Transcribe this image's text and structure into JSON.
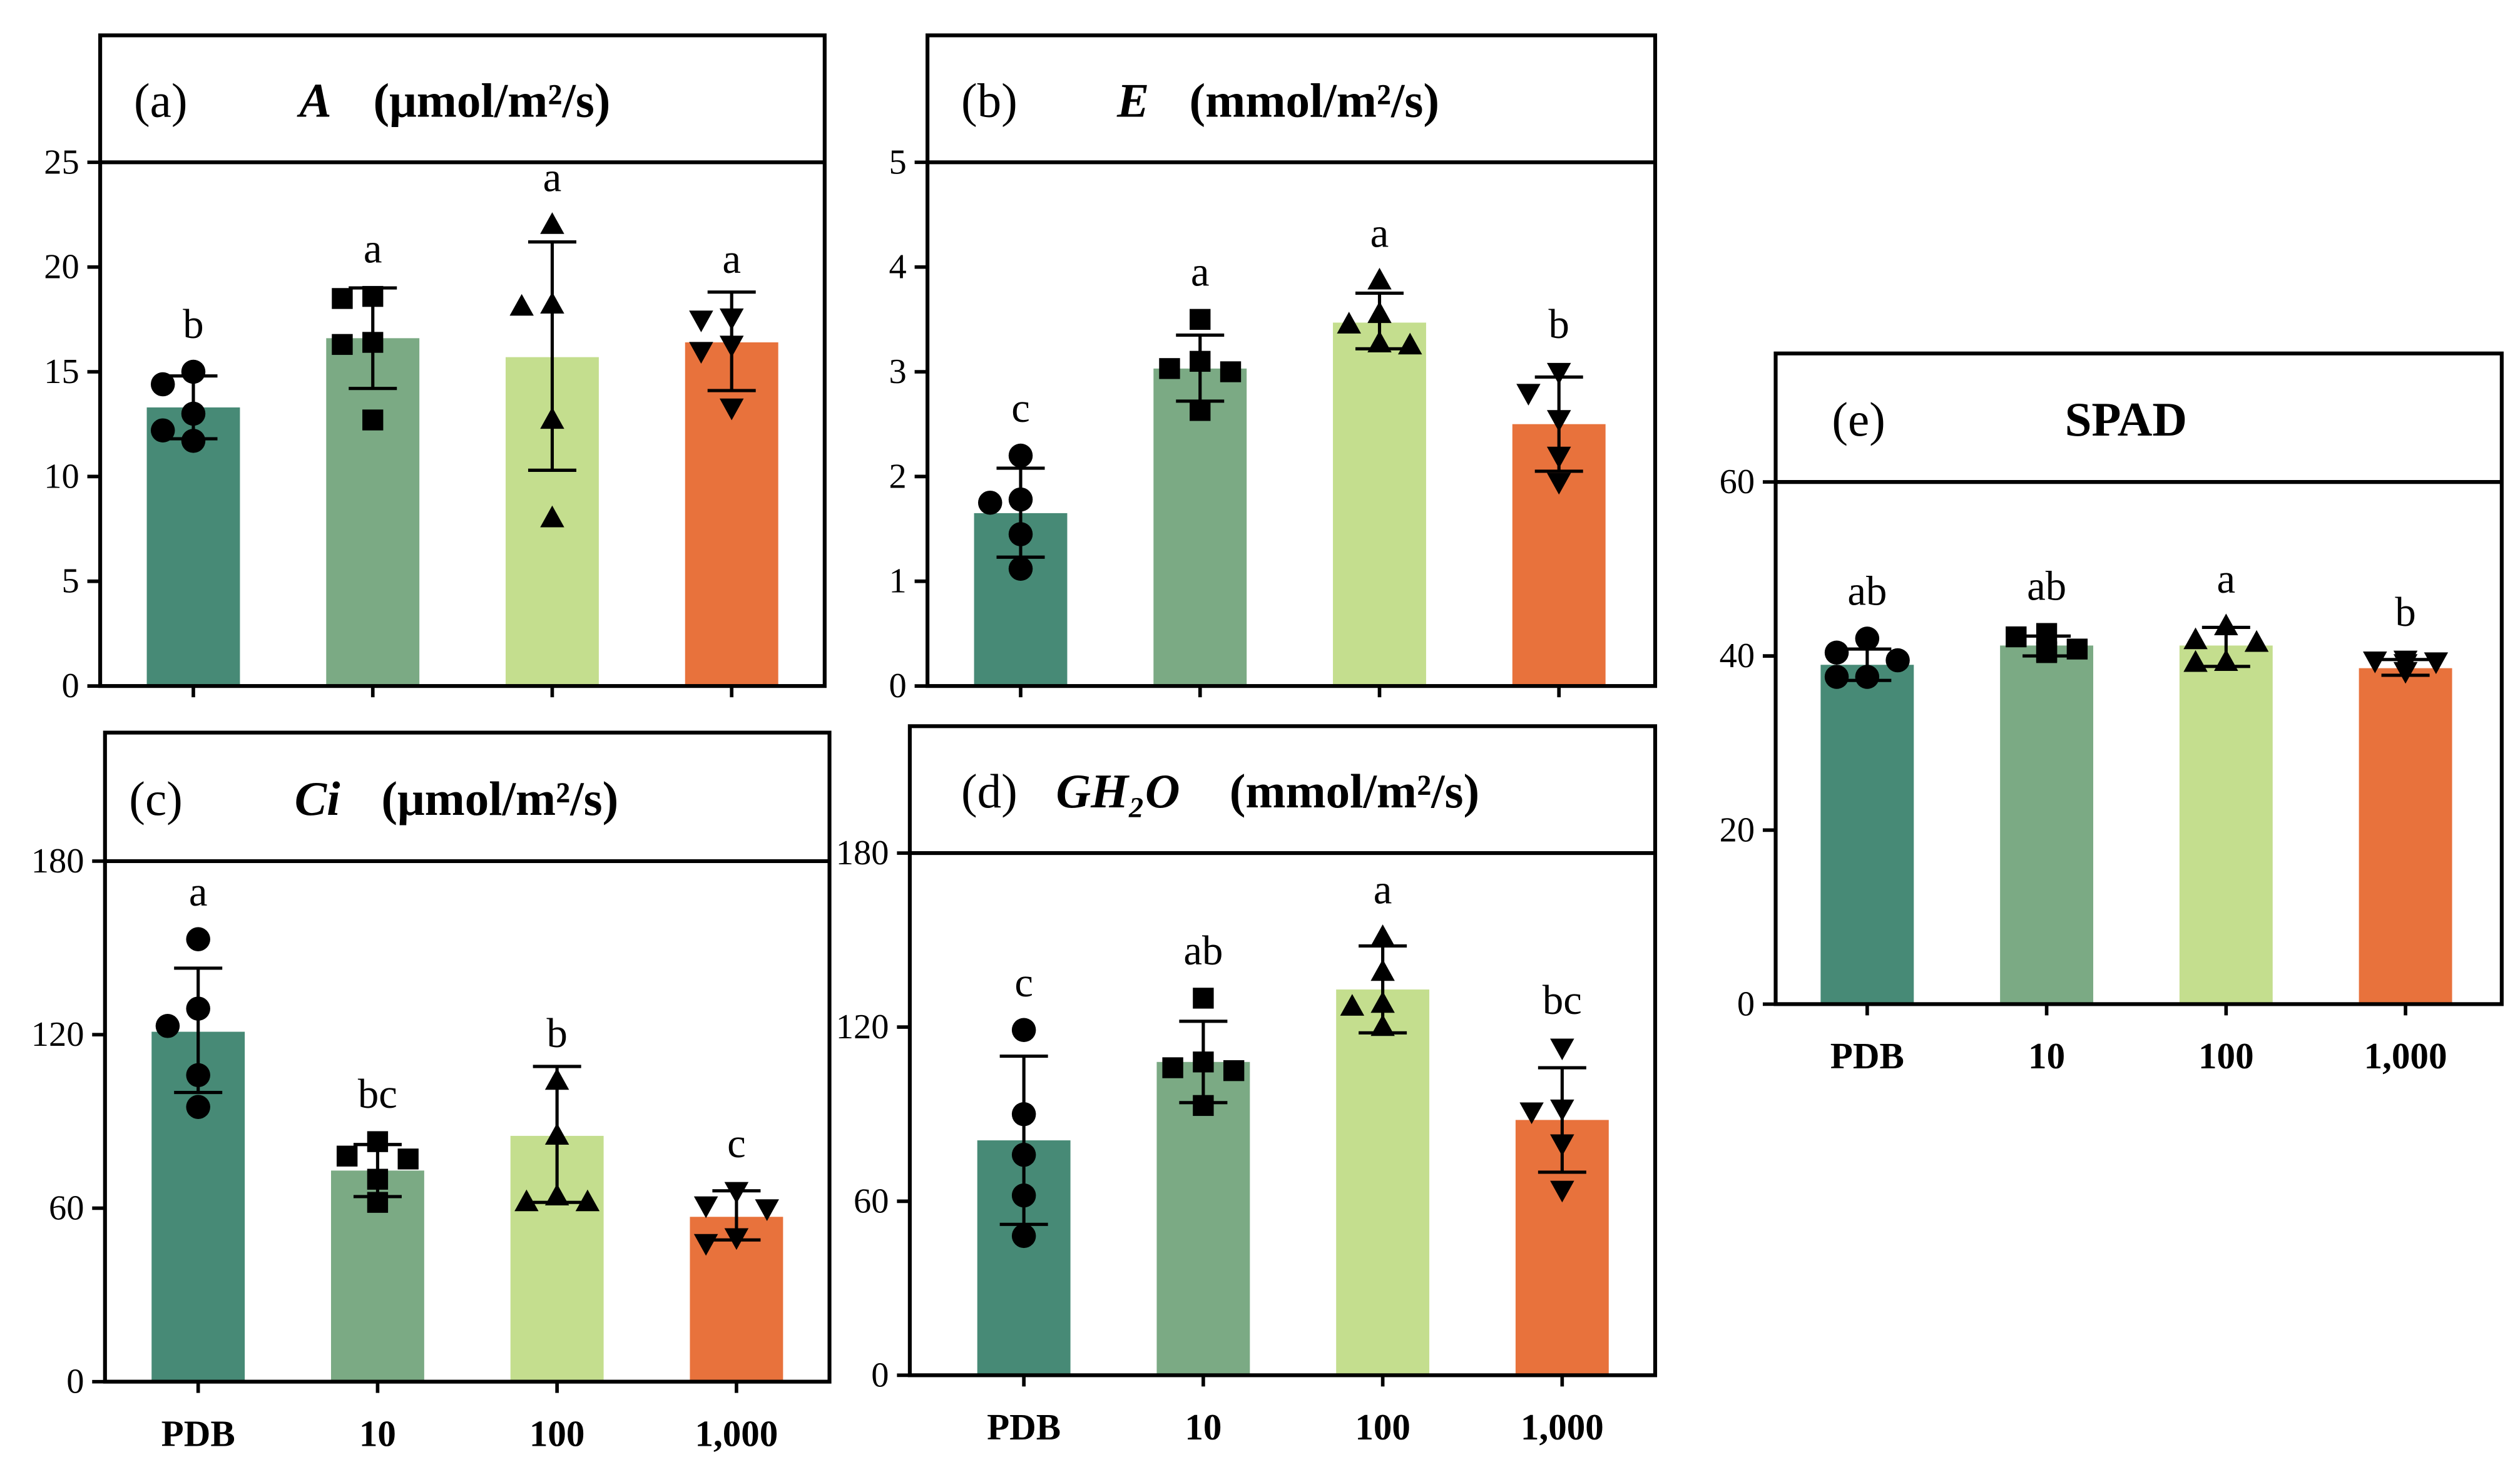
{
  "figure": {
    "background_color": "#ffffff"
  },
  "group_colors": [
    "#478a76",
    "#7baa84",
    "#c4de8e",
    "#e8723c"
  ],
  "marker_icons": [
    "circle-icon",
    "square-icon",
    "triangle-up-icon",
    "triangle-down-icon"
  ],
  "chart_data": [
    {
      "type": "bar",
      "panel_label": "(a)",
      "title_variable": "A",
      "title_unit": "(μmol/m²/s)",
      "values": [
        13.3,
        16.6,
        15.7,
        16.4
      ],
      "error_low": [
        11.8,
        14.2,
        10.3,
        14.1
      ],
      "error_high": [
        14.8,
        19.0,
        21.2,
        18.8
      ],
      "points": [
        [
          15.0,
          14.4,
          13.0,
          12.2,
          11.7
        ],
        [
          18.6,
          18.5,
          16.4,
          16.3,
          12.7
        ],
        [
          22.0,
          18.2,
          18.1,
          12.7,
          8.0
        ],
        [
          17.6,
          17.5,
          16.3,
          16.0,
          13.3
        ]
      ],
      "significance_letters": [
        "b",
        "a",
        "a",
        "a"
      ],
      "yticks": [
        0,
        5,
        10,
        15,
        20,
        25
      ],
      "ylim": [
        0,
        25
      ]
    },
    {
      "type": "bar",
      "panel_label": "(b)",
      "title_variable": "E",
      "title_unit": "(mmol/m²/s)",
      "values": [
        1.65,
        3.03,
        3.47,
        2.5
      ],
      "error_low": [
        1.23,
        2.72,
        3.22,
        2.05
      ],
      "error_high": [
        2.08,
        3.35,
        3.75,
        2.95
      ],
      "points": [
        [
          2.2,
          1.78,
          1.75,
          1.45,
          1.12
        ],
        [
          3.5,
          3.1,
          3.03,
          3.0,
          2.63
        ],
        [
          3.87,
          3.55,
          3.45,
          3.27,
          3.25
        ],
        [
          3.0,
          2.8,
          2.55,
          2.2,
          1.95
        ]
      ],
      "significance_letters": [
        "c",
        "a",
        "a",
        "b"
      ],
      "yticks": [
        0,
        1,
        2,
        3,
        4,
        5
      ],
      "ylim": [
        0,
        5
      ]
    },
    {
      "type": "bar",
      "panel_label": "(c)",
      "title_variable": "Ci",
      "title_unit": "(μmol/m²/s)",
      "categories": [
        "PDB",
        "10",
        "100",
        "1,000"
      ],
      "values": [
        121,
        73,
        85,
        57
      ],
      "error_low": [
        100,
        64,
        62,
        49
      ],
      "error_high": [
        143,
        82,
        109,
        66
      ],
      "points": [
        [
          153,
          129,
          123,
          106,
          95
        ],
        [
          83,
          78,
          77,
          70,
          62
        ],
        [
          104,
          85,
          64,
          62,
          62
        ],
        [
          66,
          61,
          60,
          50,
          48
        ]
      ],
      "significance_letters": [
        "a",
        "bc",
        "b",
        "c"
      ],
      "yticks": [
        0,
        60,
        120,
        180
      ],
      "ylim": [
        0,
        180
      ]
    },
    {
      "type": "bar",
      "panel_label": "(d)",
      "title_variable": "GH₂O",
      "title_unit": "(mmol/m²/s)",
      "categories": [
        "PDB",
        "10",
        "100",
        "1,000"
      ],
      "values": [
        81,
        108,
        133,
        88
      ],
      "error_low": [
        52,
        94,
        118,
        70
      ],
      "error_high": [
        110,
        122,
        148,
        106
      ],
      "points": [
        [
          119,
          90,
          76,
          62,
          48
        ],
        [
          130,
          108,
          106,
          105,
          93
        ],
        [
          151,
          139,
          128,
          127,
          120
        ],
        [
          113,
          92,
          91,
          80,
          64
        ]
      ],
      "significance_letters": [
        "c",
        "ab",
        "a",
        "bc"
      ],
      "yticks": [
        0,
        60,
        120,
        180
      ],
      "ylim": [
        0,
        180
      ]
    },
    {
      "type": "bar",
      "panel_label": "(e)",
      "title_variable": "SPAD",
      "categories": [
        "PDB",
        "10",
        "100",
        "1,000"
      ],
      "values": [
        39.0,
        41.2,
        41.2,
        38.6
      ],
      "error_low": [
        37.2,
        40.0,
        38.8,
        37.8
      ],
      "error_high": [
        40.8,
        42.3,
        43.3,
        39.6
      ],
      "points": [
        [
          42.0,
          40.4,
          39.5,
          37.6,
          37.6
        ],
        [
          42.6,
          42.2,
          40.8,
          40.5,
          40.4
        ],
        [
          43.4,
          41.8,
          41.5,
          39.3,
          39.2
        ],
        [
          39.6,
          39.5,
          39.4,
          39.2,
          38.3
        ]
      ],
      "significance_letters": [
        "ab",
        "ab",
        "a",
        "b"
      ],
      "yticks": [
        0,
        20,
        40,
        60
      ],
      "ylim": [
        0,
        60
      ]
    }
  ]
}
